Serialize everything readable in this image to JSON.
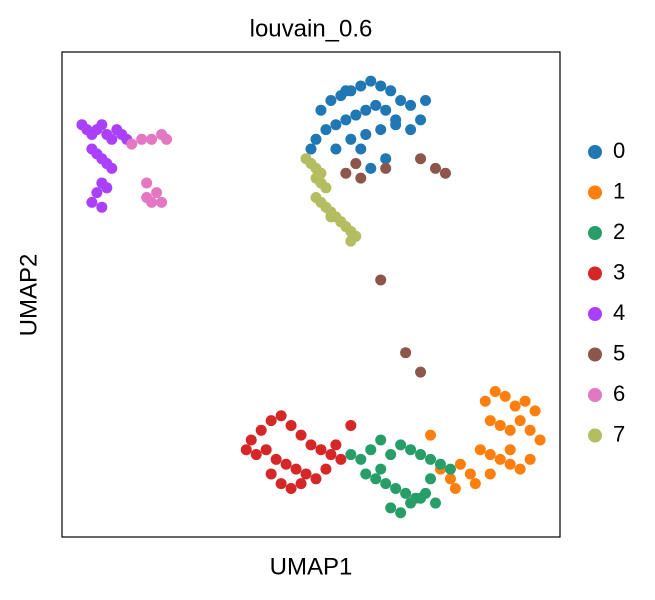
{
  "chart_data": {
    "type": "scatter",
    "title": "louvain_0.6",
    "x_label": "UMAP1",
    "y_label": "UMAP2",
    "xlim": [
      0,
      100
    ],
    "ylim": [
      0,
      100
    ],
    "series": [
      {
        "name": "0",
        "color": "#1f77b4",
        "x": [
          52,
          54,
          56,
          58,
          60,
          62,
          64,
          66,
          68,
          70,
          53,
          55,
          57,
          59,
          61,
          63,
          65,
          67,
          51,
          50,
          55,
          58,
          61,
          64,
          67,
          70,
          72,
          73,
          62,
          65,
          57,
          60
        ],
        "y": [
          88,
          90,
          91,
          92,
          93,
          94,
          93,
          92,
          90,
          89,
          84,
          85,
          86,
          87,
          88,
          89,
          88,
          86,
          82,
          80,
          80,
          82,
          83,
          84,
          85,
          84,
          86,
          90,
          76,
          78,
          92,
          80
        ]
      },
      {
        "name": "1",
        "color": "#ff7f0e",
        "x": [
          85,
          87,
          89,
          91,
          93,
          95,
          86,
          88,
          90,
          92,
          94,
          84,
          86,
          88,
          90,
          92,
          80,
          82,
          78,
          76,
          74,
          96,
          94,
          90,
          86,
          83,
          79
        ],
        "y": [
          28,
          30,
          29,
          27,
          28,
          26,
          24,
          23,
          22,
          24,
          22,
          18,
          17,
          16,
          15,
          14,
          15,
          13,
          12,
          14,
          21,
          20,
          16,
          18,
          13,
          11,
          10
        ]
      },
      {
        "name": "2",
        "color": "#279e68",
        "x": [
          60,
          62,
          64,
          66,
          68,
          70,
          72,
          74,
          76,
          78,
          61,
          63,
          65,
          67,
          69,
          71,
          73,
          75,
          66,
          68,
          70,
          72,
          64,
          74,
          58
        ],
        "y": [
          16,
          18,
          20,
          17,
          19,
          18,
          17,
          16,
          15,
          14,
          13,
          12,
          11,
          10,
          9,
          8,
          9,
          7,
          6,
          5,
          7,
          8,
          14,
          12,
          17
        ]
      },
      {
        "name": "3",
        "color": "#d62728",
        "x": [
          38,
          40,
          42,
          44,
          46,
          48,
          50,
          52,
          54,
          56,
          39,
          41,
          43,
          45,
          47,
          49,
          51,
          53,
          44,
          46,
          48,
          55,
          58,
          42,
          37
        ],
        "y": [
          20,
          22,
          24,
          25,
          23,
          21,
          19,
          18,
          17,
          16,
          17,
          18,
          16,
          15,
          14,
          13,
          12,
          14,
          11,
          10,
          11,
          19,
          23,
          13,
          18
        ]
      },
      {
        "name": "4",
        "color": "#aa40fc",
        "x": [
          4,
          5,
          6,
          7,
          8,
          9,
          10,
          11,
          12,
          13,
          6,
          7,
          8,
          9,
          10,
          8,
          7,
          6,
          9,
          8
        ],
        "y": [
          85,
          84,
          83,
          84,
          85,
          83,
          82,
          84,
          83,
          82,
          80,
          79,
          78,
          77,
          76,
          73,
          71,
          69,
          72,
          68
        ]
      },
      {
        "name": "5",
        "color": "#8c564b",
        "x": [
          57,
          59,
          65,
          72,
          75,
          77,
          64,
          69,
          72,
          60
        ],
        "y": [
          75,
          77,
          76,
          78,
          76,
          75,
          53,
          38,
          34,
          74
        ]
      },
      {
        "name": "6",
        "color": "#e377c2",
        "x": [
          14,
          16,
          18,
          20,
          21,
          17,
          19,
          18,
          20,
          17
        ],
        "y": [
          81,
          82,
          82,
          83,
          82,
          73,
          71,
          69,
          69,
          70
        ]
      },
      {
        "name": "7",
        "color": "#b5bd61",
        "x": [
          49,
          50,
          51,
          52,
          51,
          52,
          53,
          51,
          52,
          53,
          54,
          55,
          56,
          57,
          58,
          59,
          58,
          56,
          54
        ],
        "y": [
          78,
          77,
          76,
          75,
          74,
          73,
          72,
          70,
          69,
          68,
          67,
          66,
          65,
          64,
          63,
          62,
          61,
          65,
          66
        ]
      }
    ]
  }
}
